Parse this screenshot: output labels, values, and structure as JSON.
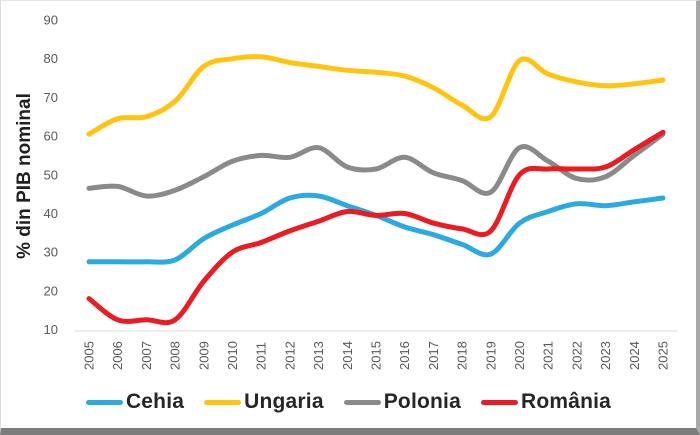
{
  "chart_data": {
    "type": "line",
    "title": "",
    "ylabel": "% din PIB nominal",
    "xlabel": "",
    "ylim": [
      10,
      90
    ],
    "yticks": [
      10,
      20,
      30,
      40,
      50,
      60,
      70,
      80,
      90
    ],
    "grid": false,
    "smoothed": true,
    "legend_position": "bottom",
    "x": [
      2005,
      2006,
      2007,
      2008,
      2009,
      2010,
      2011,
      2012,
      2013,
      2014,
      2015,
      2016,
      2017,
      2018,
      2019,
      2020,
      2021,
      2022,
      2023,
      2024,
      2025
    ],
    "series": [
      {
        "name": "Cehia",
        "color": "#2AAAE1",
        "values": [
          27.5,
          27.5,
          27.5,
          28,
          33.5,
          37,
          40,
          44,
          44.5,
          42,
          39.5,
          36.5,
          34.5,
          32,
          29.5,
          37.5,
          40.5,
          42.5,
          42,
          43,
          44
        ]
      },
      {
        "name": "Ungaria",
        "color": "#FFC310",
        "values": [
          60.5,
          64.5,
          65,
          69,
          78,
          80,
          80.5,
          79,
          78,
          77,
          76.5,
          75.5,
          72.5,
          68,
          65,
          79.5,
          76,
          74,
          73,
          73.5,
          74.5
        ]
      },
      {
        "name": "Polonia",
        "color": "#8A8A8A",
        "values": [
          46.5,
          47,
          44.5,
          46,
          49.5,
          53.5,
          55,
          54.5,
          57,
          52,
          51.5,
          54.5,
          50.5,
          48.5,
          45.5,
          57,
          53.5,
          49,
          49.5,
          55,
          60.5
        ]
      },
      {
        "name": "România",
        "color": "#EB1B23",
        "values": [
          18,
          12.5,
          12.5,
          12.5,
          22.5,
          30,
          32.5,
          35.5,
          38,
          40.5,
          39.5,
          40,
          37.5,
          36,
          35.5,
          50,
          51.5,
          51.5,
          52,
          56.5,
          61
        ]
      }
    ],
    "axis_line_color": "#D9D9D9",
    "tick_label_color": "#595959"
  },
  "frame": {
    "background": "#FFFFFF",
    "border_right": "#A9A9A9",
    "border_bottom": "#7C7C7C"
  }
}
